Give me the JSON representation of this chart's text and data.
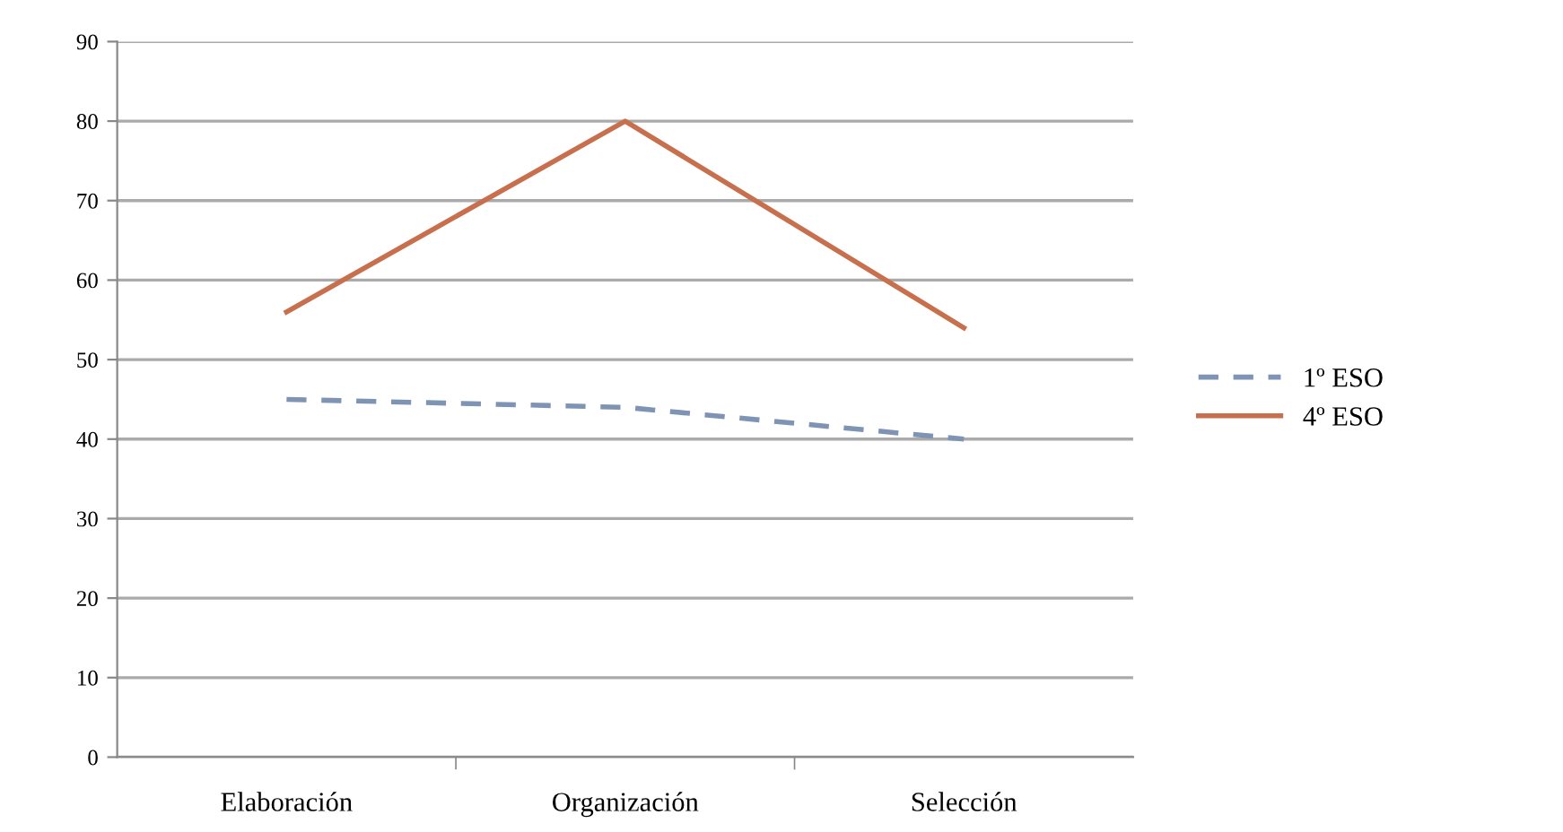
{
  "chart_data": {
    "type": "line",
    "categories": [
      "Elaboración",
      "Organización",
      "Selección"
    ],
    "series": [
      {
        "name": "1º ESO",
        "color": "#7f93b5",
        "values": [
          45,
          44,
          40
        ],
        "line_style": "dashed"
      },
      {
        "name": "4º ESO",
        "color": "#c8704e",
        "values": [
          56,
          80,
          54
        ],
        "line_style": "solid"
      }
    ],
    "ylim": [
      0,
      90
    ],
    "yticks": [
      0,
      10,
      20,
      30,
      40,
      50,
      60,
      70,
      80,
      90
    ],
    "grid": "y",
    "legend": "right",
    "marker": "none"
  }
}
